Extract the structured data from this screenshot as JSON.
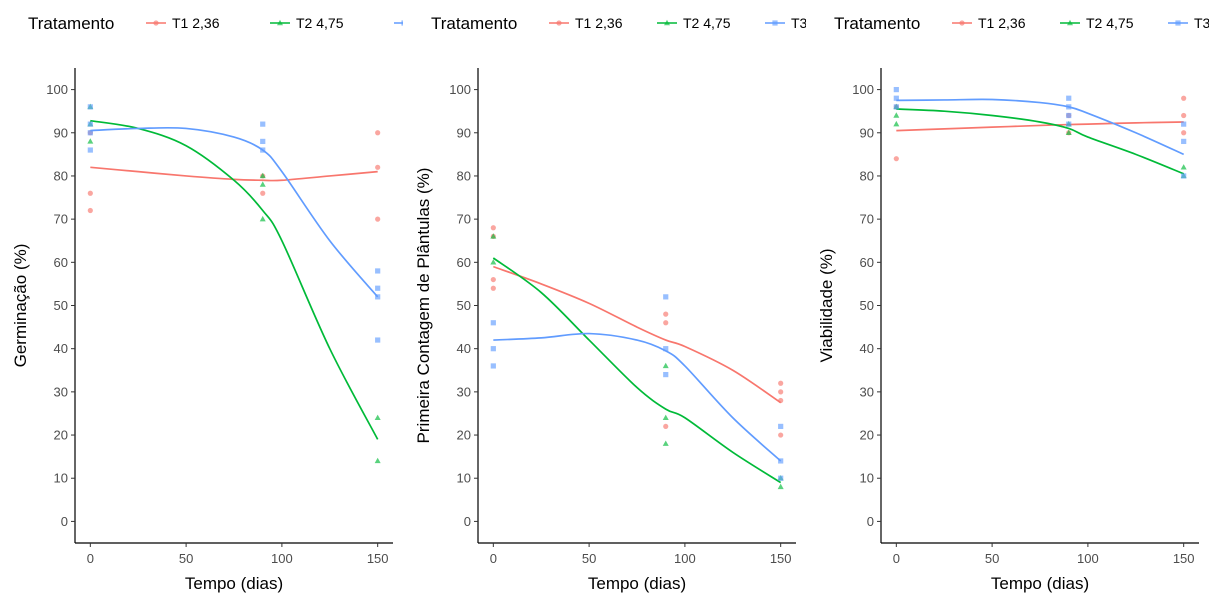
{
  "legend": {
    "title": "Tratamento",
    "entries": [
      {
        "label": "T1 2,36",
        "color": "#F8766D",
        "marker": "circle"
      },
      {
        "label": "T2 4,75",
        "color": "#00BA38",
        "marker": "triangle"
      },
      {
        "label": "T3",
        "color": "#619CFF",
        "marker": "square"
      }
    ]
  },
  "chart_data": [
    {
      "type": "scatter",
      "smooth_lines": true,
      "xlabel": "Tempo (dias)",
      "ylabel": "Germinação (%)",
      "xlim": [
        -8,
        158
      ],
      "ylim": [
        -5,
        105
      ],
      "xticks": [
        0,
        50,
        100,
        150
      ],
      "yticks": [
        0,
        10,
        20,
        30,
        40,
        50,
        60,
        70,
        80,
        90,
        100
      ],
      "grid": false,
      "legend_position": "top",
      "series": [
        {
          "name": "T1 2,36",
          "points": [
            [
              0,
              72
            ],
            [
              0,
              76
            ],
            [
              0,
              90
            ],
            [
              90,
              76
            ],
            [
              90,
              80
            ],
            [
              150,
              70
            ],
            [
              150,
              82
            ],
            [
              150,
              90
            ]
          ],
          "curve": [
            [
              0,
              82
            ],
            [
              25,
              81
            ],
            [
              50,
              80
            ],
            [
              75,
              79.2
            ],
            [
              90,
              79
            ],
            [
              100,
              79
            ],
            [
              125,
              80
            ],
            [
              150,
              81
            ]
          ]
        },
        {
          "name": "T2 4,75",
          "points": [
            [
              0,
              88
            ],
            [
              0,
              92
            ],
            [
              0,
              96
            ],
            [
              90,
              70
            ],
            [
              90,
              78
            ],
            [
              90,
              80
            ],
            [
              150,
              14
            ],
            [
              150,
              24
            ]
          ],
          "curve": [
            [
              0,
              92.8
            ],
            [
              25,
              91
            ],
            [
              50,
              87
            ],
            [
              75,
              79
            ],
            [
              90,
              72
            ],
            [
              100,
              65
            ],
            [
              125,
              40
            ],
            [
              150,
              19
            ]
          ]
        },
        {
          "name": "T3",
          "points": [
            [
              0,
              86
            ],
            [
              0,
              90
            ],
            [
              0,
              92
            ],
            [
              0,
              96
            ],
            [
              90,
              86
            ],
            [
              90,
              88
            ],
            [
              90,
              92
            ],
            [
              150,
              42
            ],
            [
              150,
              52
            ],
            [
              150,
              54
            ],
            [
              150,
              58
            ]
          ],
          "curve": [
            [
              0,
              90.5
            ],
            [
              25,
              91
            ],
            [
              50,
              91
            ],
            [
              75,
              89
            ],
            [
              90,
              86
            ],
            [
              100,
              81
            ],
            [
              125,
              65
            ],
            [
              150,
              52
            ]
          ]
        }
      ]
    },
    {
      "type": "scatter",
      "smooth_lines": true,
      "xlabel": "Tempo (dias)",
      "ylabel": "Primeira Contagem de Plântulas (%)",
      "xlim": [
        -8,
        158
      ],
      "ylim": [
        -5,
        105
      ],
      "xticks": [
        0,
        50,
        100,
        150
      ],
      "yticks": [
        0,
        10,
        20,
        30,
        40,
        50,
        60,
        70,
        80,
        90,
        100
      ],
      "grid": false,
      "legend_position": "top",
      "series": [
        {
          "name": "T1 2,36",
          "points": [
            [
              0,
              54
            ],
            [
              0,
              56
            ],
            [
              0,
              66
            ],
            [
              0,
              68
            ],
            [
              90,
              22
            ],
            [
              90,
              46
            ],
            [
              90,
              48
            ],
            [
              150,
              20
            ],
            [
              150,
              28
            ],
            [
              150,
              30
            ],
            [
              150,
              32
            ]
          ],
          "curve": [
            [
              0,
              59
            ],
            [
              25,
              55
            ],
            [
              50,
              50.5
            ],
            [
              75,
              45
            ],
            [
              90,
              42
            ],
            [
              100,
              40.5
            ],
            [
              125,
              35
            ],
            [
              150,
              27.5
            ]
          ]
        },
        {
          "name": "T2 4,75",
          "points": [
            [
              0,
              60
            ],
            [
              0,
              66
            ],
            [
              90,
              18
            ],
            [
              90,
              24
            ],
            [
              90,
              36
            ],
            [
              150,
              8
            ],
            [
              150,
              10
            ]
          ],
          "curve": [
            [
              0,
              61
            ],
            [
              25,
              53
            ],
            [
              50,
              42
            ],
            [
              75,
              31
            ],
            [
              90,
              26
            ],
            [
              100,
              24
            ],
            [
              125,
              16
            ],
            [
              150,
              9
            ]
          ]
        },
        {
          "name": "T3",
          "points": [
            [
              0,
              36
            ],
            [
              0,
              40
            ],
            [
              0,
              46
            ],
            [
              90,
              34
            ],
            [
              90,
              40
            ],
            [
              90,
              52
            ],
            [
              150,
              10
            ],
            [
              150,
              14
            ],
            [
              150,
              22
            ]
          ],
          "curve": [
            [
              0,
              42
            ],
            [
              25,
              42.5
            ],
            [
              50,
              43.5
            ],
            [
              75,
              42
            ],
            [
              90,
              39.5
            ],
            [
              100,
              36
            ],
            [
              125,
              24
            ],
            [
              150,
              14
            ]
          ]
        }
      ]
    },
    {
      "type": "scatter",
      "smooth_lines": true,
      "xlabel": "Tempo (dias)",
      "ylabel": "Viabilidade (%)",
      "xlim": [
        -8,
        158
      ],
      "ylim": [
        -5,
        105
      ],
      "xticks": [
        0,
        50,
        100,
        150
      ],
      "yticks": [
        0,
        10,
        20,
        30,
        40,
        50,
        60,
        70,
        80,
        90,
        100
      ],
      "grid": false,
      "legend_position": "top",
      "series": [
        {
          "name": "T1 2,36",
          "points": [
            [
              0,
              84
            ],
            [
              0,
              96
            ],
            [
              90,
              90
            ],
            [
              90,
              94
            ],
            [
              150,
              90
            ],
            [
              150,
              94
            ],
            [
              150,
              98
            ]
          ],
          "curve": [
            [
              0,
              90.5
            ],
            [
              25,
              90.9
            ],
            [
              50,
              91.3
            ],
            [
              75,
              91.7
            ],
            [
              90,
              91.9
            ],
            [
              100,
              92
            ],
            [
              125,
              92.3
            ],
            [
              150,
              92.5
            ]
          ]
        },
        {
          "name": "T2 4,75",
          "points": [
            [
              0,
              92
            ],
            [
              0,
              94
            ],
            [
              0,
              96
            ],
            [
              90,
              90
            ],
            [
              90,
              92
            ],
            [
              150,
              80
            ],
            [
              150,
              82
            ]
          ],
          "curve": [
            [
              0,
              95.5
            ],
            [
              25,
              95
            ],
            [
              50,
              94
            ],
            [
              75,
              92.5
            ],
            [
              90,
              91
            ],
            [
              100,
              89
            ],
            [
              125,
              85
            ],
            [
              150,
              80.5
            ]
          ]
        },
        {
          "name": "T3",
          "points": [
            [
              0,
              96
            ],
            [
              0,
              98
            ],
            [
              0,
              100
            ],
            [
              90,
              92
            ],
            [
              90,
              94
            ],
            [
              90,
              96
            ],
            [
              90,
              98
            ],
            [
              150,
              80
            ],
            [
              150,
              88
            ],
            [
              150,
              92
            ]
          ],
          "curve": [
            [
              0,
              97.5
            ],
            [
              25,
              97.6
            ],
            [
              50,
              97.7
            ],
            [
              75,
              97
            ],
            [
              90,
              96
            ],
            [
              100,
              94.5
            ],
            [
              125,
              90
            ],
            [
              150,
              85
            ]
          ]
        }
      ]
    }
  ]
}
